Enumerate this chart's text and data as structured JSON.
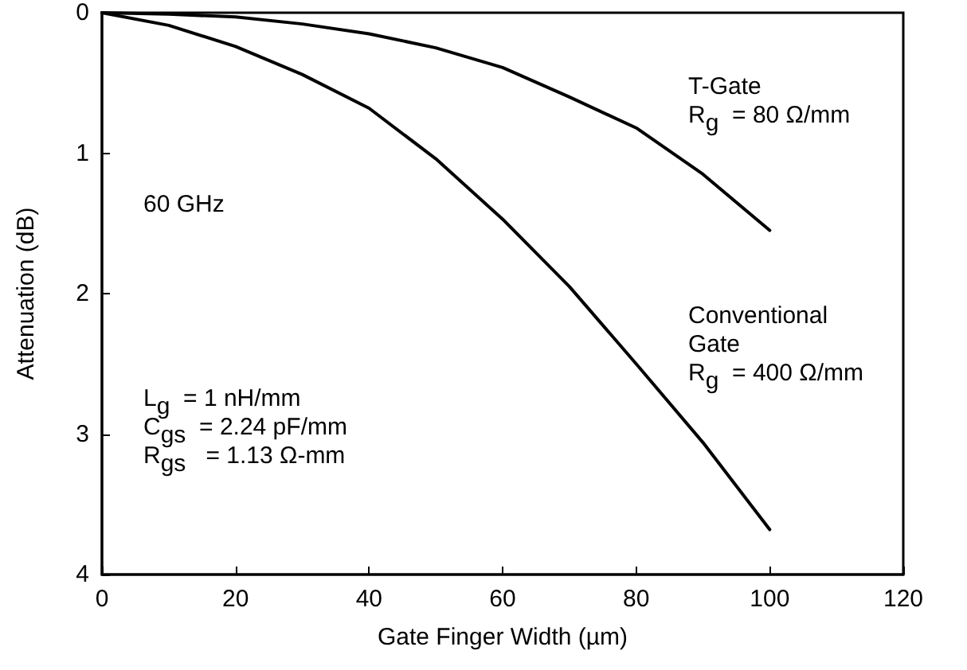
{
  "chart_data": {
    "type": "line",
    "xlabel": "Gate Finger Width (µm)",
    "ylabel": "Attenuation (dB)",
    "xlim": [
      0,
      120
    ],
    "xticks": [
      0,
      20,
      40,
      60,
      80,
      100,
      120
    ],
    "ylim": [
      4,
      0
    ],
    "yticks": [
      0,
      1,
      2,
      3,
      4
    ],
    "grid": false,
    "marker": "none",
    "line_style": "solid",
    "series": [
      {
        "color": "#000000",
        "x": [
          0,
          10,
          20,
          30,
          40,
          50,
          60,
          70,
          80,
          90,
          100
        ],
        "values": [
          0,
          0.01,
          0.03,
          0.08,
          0.15,
          0.25,
          0.39,
          0.6,
          0.82,
          1.15,
          1.55
        ]
      },
      {
        "color": "#000000",
        "x": [
          0,
          10,
          20,
          30,
          40,
          50,
          60,
          70,
          80,
          90,
          100
        ],
        "values": [
          0,
          0.09,
          0.24,
          0.44,
          0.68,
          1.04,
          1.47,
          1.95,
          2.5,
          3.06,
          3.68
        ]
      }
    ],
    "annotations": [
      "T-Gate\nR$_{g}$  = 80 Ω/mm",
      "Conventional\nGate\nR$_{g}$  = 400 Ω/mm",
      "60 GHz",
      "L$_{g}$  = 1 nH/mm\nC$_{gs}$  = 2.24 pF/mm\nR$_{gs}$   = 1.13 Ω-mm"
    ]
  }
}
